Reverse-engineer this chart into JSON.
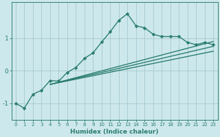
{
  "xlabel": "Humidex (Indice chaleur)",
  "ylabel": "",
  "background_color": "#cde8ec",
  "grid_color": "#a8cdd4",
  "line_color": "#2a7d6e",
  "xlim": [
    -0.5,
    23.5
  ],
  "ylim": [
    -1.5,
    2.1
  ],
  "yticks": [
    -1,
    0,
    1
  ],
  "xticks": [
    0,
    1,
    2,
    3,
    4,
    5,
    6,
    7,
    8,
    9,
    10,
    11,
    12,
    13,
    14,
    15,
    16,
    17,
    18,
    19,
    20,
    21,
    22,
    23
  ],
  "lines": [
    {
      "x": [
        0,
        1,
        2,
        3,
        4,
        5,
        6,
        7,
        8,
        9,
        10,
        11,
        12,
        13,
        14,
        15,
        16,
        17,
        18,
        19,
        20,
        21,
        22,
        23
      ],
      "y": [
        -1.0,
        -1.15,
        -0.72,
        -0.6,
        -0.3,
        -0.32,
        -0.05,
        0.1,
        0.38,
        0.55,
        0.88,
        1.2,
        1.55,
        1.75,
        1.38,
        1.32,
        1.12,
        1.05,
        1.05,
        1.05,
        0.87,
        0.8,
        0.87,
        0.8
      ],
      "marker": "D",
      "markersize": 2.5,
      "linewidth": 1.0,
      "with_marker": true
    },
    {
      "x": [
        4,
        23
      ],
      "y": [
        -0.42,
        0.9
      ],
      "marker": null,
      "markersize": 0,
      "linewidth": 1.0,
      "with_marker": false
    },
    {
      "x": [
        4,
        23
      ],
      "y": [
        -0.42,
        0.75
      ],
      "marker": null,
      "markersize": 0,
      "linewidth": 1.0,
      "with_marker": false
    },
    {
      "x": [
        4,
        23
      ],
      "y": [
        -0.42,
        0.6
      ],
      "marker": null,
      "markersize": 0,
      "linewidth": 1.0,
      "with_marker": false
    }
  ]
}
